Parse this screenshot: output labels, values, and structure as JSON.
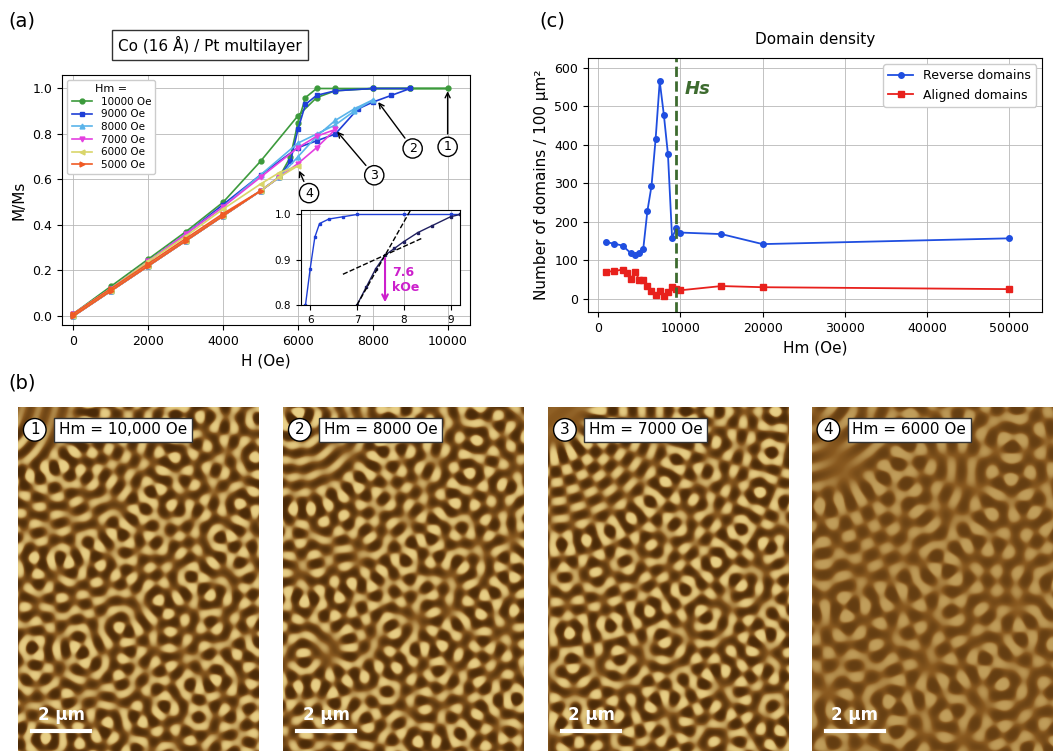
{
  "chart_data": [
    {
      "type": "line",
      "panel_label": "(a)",
      "title": "Co (16 Å) / Pt multilayer",
      "x_label": "H (Oe)",
      "y_label": "M/Ms",
      "xlim": [
        -300,
        10600
      ],
      "ylim": [
        -0.04,
        1.06
      ],
      "xticks": [
        0,
        2000,
        4000,
        6000,
        8000,
        10000
      ],
      "yticks": [
        {
          "value": 0,
          "label": "0.0"
        },
        {
          "value": 0.2,
          "label": "0.2"
        },
        {
          "value": 0.4,
          "label": "0.4"
        },
        {
          "value": 0.6,
          "label": "0.6"
        },
        {
          "value": 0.8,
          "label": "0.8"
        },
        {
          "value": 1.0,
          "label": "1.0"
        }
      ],
      "grid": true,
      "legend": "upper left",
      "legend_title": "Hm =",
      "series": [
        {
          "name": "10000 Oe",
          "color": "#3c9a3c",
          "marker": "circle",
          "x": [
            0,
            1000,
            2000,
            3000,
            4000,
            5000,
            5500,
            5800,
            6000,
            6200,
            6500,
            7000,
            8000,
            9000,
            10000,
            9000,
            8000,
            7000,
            6500,
            6000,
            5000,
            4000,
            3000,
            2000,
            1000,
            0
          ],
          "values": [
            0,
            0.11,
            0.22,
            0.33,
            0.44,
            0.55,
            0.61,
            0.7,
            0.85,
            0.96,
            1.0,
            1.0,
            1.0,
            1.0,
            1.0,
            1.0,
            1.0,
            0.99,
            0.96,
            0.88,
            0.68,
            0.5,
            0.37,
            0.25,
            0.13,
            0.01
          ]
        },
        {
          "name": "9000 Oe",
          "color": "#1f3fd6",
          "marker": "square",
          "x": [
            0,
            1000,
            2000,
            3000,
            4000,
            5000,
            5500,
            5800,
            6000,
            6200,
            6500,
            7000,
            8000,
            9000,
            8500,
            8000,
            7600,
            7000,
            6500,
            6000,
            5000,
            4000,
            3000,
            2000,
            1000,
            0
          ],
          "values": [
            0,
            0.11,
            0.22,
            0.33,
            0.44,
            0.55,
            0.61,
            0.68,
            0.82,
            0.93,
            0.97,
            0.99,
            1.0,
            1.0,
            0.97,
            0.94,
            0.91,
            0.8,
            0.77,
            0.74,
            0.62,
            0.49,
            0.36,
            0.24,
            0.12,
            0.01
          ]
        },
        {
          "name": "8000 Oe",
          "color": "#5ab4ea",
          "marker": "triangle_up",
          "x": [
            0,
            1000,
            2000,
            3000,
            4000,
            5000,
            5500,
            6000,
            6500,
            7000,
            7500,
            8000,
            7500,
            7000,
            6500,
            6000,
            5000,
            4000,
            3000,
            2000,
            1000,
            0
          ],
          "values": [
            0,
            0.11,
            0.22,
            0.33,
            0.44,
            0.55,
            0.61,
            0.7,
            0.79,
            0.86,
            0.91,
            0.95,
            0.9,
            0.84,
            0.8,
            0.76,
            0.62,
            0.48,
            0.36,
            0.24,
            0.12,
            0.01
          ]
        },
        {
          "name": "7000 Oe",
          "color": "#e43fe0",
          "marker": "triangle_down",
          "x": [
            0,
            1000,
            2000,
            3000,
            4000,
            5000,
            5500,
            6000,
            6500,
            7000,
            6500,
            6000,
            5000,
            4000,
            3000,
            2000,
            1000,
            0
          ],
          "values": [
            0,
            0.11,
            0.22,
            0.33,
            0.44,
            0.55,
            0.61,
            0.67,
            0.74,
            0.82,
            0.79,
            0.74,
            0.61,
            0.48,
            0.36,
            0.24,
            0.12,
            0.01
          ]
        },
        {
          "name": "6000 Oe",
          "color": "#d9d56a",
          "marker": "triangle_left",
          "x": [
            0,
            1000,
            2000,
            3000,
            4000,
            5000,
            5500,
            6000,
            5500,
            5000,
            4000,
            3000,
            2000,
            1000,
            0
          ],
          "values": [
            0,
            0.11,
            0.22,
            0.33,
            0.44,
            0.55,
            0.61,
            0.66,
            0.63,
            0.58,
            0.47,
            0.35,
            0.24,
            0.12,
            0.01
          ]
        },
        {
          "name": "5000 Oe",
          "color": "#f05a24",
          "marker": "triangle_right",
          "x": [
            0,
            1000,
            2000,
            3000,
            4000,
            5000,
            4000,
            3000,
            2000,
            1000,
            0
          ],
          "values": [
            0,
            0.11,
            0.22,
            0.33,
            0.44,
            0.55,
            0.45,
            0.34,
            0.23,
            0.12,
            0.01
          ]
        }
      ],
      "annotations": [
        {
          "text": "1",
          "x": 10000,
          "y": 1.0
        },
        {
          "text": "2",
          "x": 8100,
          "y": 0.95
        },
        {
          "text": "3",
          "x": 7000,
          "y": 0.82
        },
        {
          "text": "4",
          "x": 6000,
          "y": 0.65
        }
      ],
      "inset": {
        "type": "line",
        "xlim": [
          5.8,
          9.2
        ],
        "ylim": [
          0.8,
          1.01
        ],
        "xticks": [
          6,
          7,
          8,
          9
        ],
        "yticks": [
          {
            "value": 0.8,
            "label": "0.8"
          },
          {
            "value": 0.9,
            "label": "0.9"
          },
          {
            "value": 1.0,
            "label": "1.0"
          }
        ],
        "grid": true,
        "series": [
          {
            "color": "#1f3fd6",
            "marker": "square",
            "line_style": "solid",
            "x": [
              5.9,
              6.0,
              6.1,
              6.2,
              6.4,
              6.7,
              7.0,
              8.0,
              9.0,
              9.2
            ],
            "values": [
              0.8,
              0.88,
              0.95,
              0.98,
              0.99,
              0.995,
              1.0,
              1.0,
              1.0,
              1.0
            ]
          },
          {
            "color": "#202060",
            "marker": "square",
            "line_style": "solid",
            "x": [
              7.0,
              7.2,
              7.4,
              7.6,
              7.8,
              8.0,
              8.3,
              8.6,
              9.0,
              9.2
            ],
            "values": [
              0.8,
              0.84,
              0.88,
              0.91,
              0.925,
              0.94,
              0.96,
              0.975,
              0.995,
              1.0
            ]
          },
          {
            "color": "#000000",
            "line_style": "dashed",
            "x": [
              7.0,
              8.3
            ],
            "values": [
              0.8,
              1.038
            ]
          },
          {
            "color": "#000000",
            "line_style": "dashed",
            "x": [
              6.7,
              8.4
            ],
            "values": [
              0.868,
              0.948
            ]
          }
        ],
        "annotation": {
          "text": "7.6\nkOe",
          "x": 7.6,
          "y": 0.91,
          "y_to": 0.8,
          "color": "#cc1fcc"
        }
      }
    },
    {
      "type": "image",
      "panel_label": "(b)",
      "images": [
        {
          "number": "1",
          "label": "Hm = 10,000 Oe",
          "scale_bar": "2 µm"
        },
        {
          "number": "2",
          "label": "Hm = 8000 Oe",
          "scale_bar": "2 µm"
        },
        {
          "number": "3",
          "label": "Hm = 7000 Oe",
          "scale_bar": "2 µm"
        },
        {
          "number": "4",
          "label": "Hm = 6000 Oe",
          "scale_bar": "2 µm"
        }
      ]
    },
    {
      "type": "line",
      "panel_label": "(c)",
      "title": "Domain density",
      "x_label": "Hm (Oe)",
      "y_label": "Number of domains / 100 µm²",
      "xlim": [
        -1200,
        54000
      ],
      "ylim": [
        -35,
        625
      ],
      "xticks": [
        0,
        10000,
        20000,
        30000,
        40000,
        50000
      ],
      "yticks": [
        0,
        100,
        200,
        300,
        400,
        500,
        600
      ],
      "grid": true,
      "legend": "upper right",
      "series": [
        {
          "name": "Reverse domains",
          "color": "#1f4ee0",
          "marker": "circle",
          "x": [
            1000,
            2000,
            3000,
            4000,
            4500,
            5000,
            5500,
            6000,
            6500,
            7000,
            7500,
            8000,
            8500,
            9000,
            9500,
            10000,
            15000,
            20000,
            50000
          ],
          "values": [
            147,
            143,
            138,
            118,
            113,
            120,
            130,
            228,
            293,
            415,
            565,
            478,
            375,
            158,
            183,
            172,
            168,
            142,
            157
          ]
        },
        {
          "name": "Aligned domains",
          "color": "#e8201c",
          "marker": "square",
          "x": [
            1000,
            2000,
            3000,
            3500,
            4000,
            4500,
            5000,
            5500,
            6000,
            6500,
            7000,
            7500,
            8000,
            8500,
            9000,
            9500,
            10000,
            15000,
            20000,
            50000
          ],
          "values": [
            70,
            72,
            76,
            68,
            52,
            70,
            50,
            48,
            32,
            20,
            10,
            20,
            8,
            18,
            30,
            25,
            22,
            33,
            30,
            25
          ]
        }
      ],
      "reference_line": {
        "x": 9500,
        "label": "Hs",
        "color": "#3d6b2f",
        "line_style": "dashed"
      }
    }
  ]
}
